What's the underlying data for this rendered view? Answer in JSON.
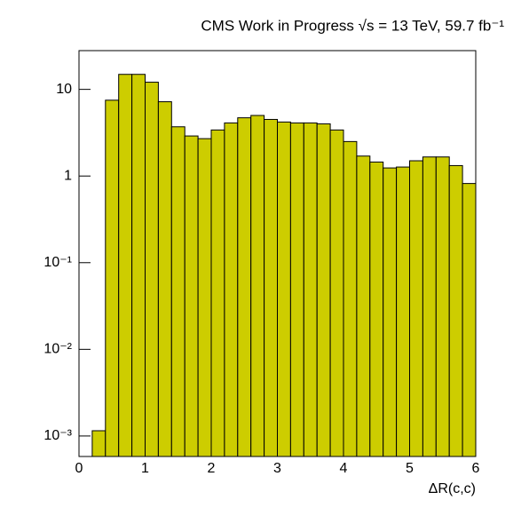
{
  "chart_data": {
    "type": "histogram",
    "title": "CMS Work in Progress √s = 13 TeV, 59.7 fb⁻¹",
    "x_label": "ΔR(c,c)",
    "bins": [
      0,
      0.2,
      0.4,
      0.6,
      0.8,
      1.0,
      1.2,
      1.4,
      1.6,
      1.8,
      2.0,
      2.2,
      2.4,
      2.6,
      2.8,
      3.0,
      3.2,
      3.4,
      3.6,
      3.8,
      4.0,
      4.2,
      4.4,
      4.6,
      4.8,
      5.0,
      5.2,
      5.4,
      5.6,
      5.8,
      6.0
    ],
    "values": [
      0,
      0.00115,
      7.5,
      14.9,
      14.9,
      12.1,
      7.2,
      3.7,
      2.9,
      2.7,
      3.4,
      4.1,
      4.7,
      5.0,
      4.5,
      4.2,
      4.1,
      4.1,
      4.0,
      3.4,
      2.5,
      1.7,
      1.45,
      1.24,
      1.27,
      1.5,
      1.66,
      1.66,
      1.32,
      0.82
    ],
    "color": "#cdcd00",
    "xlim": [
      0,
      6
    ],
    "xticks": [
      0,
      1,
      2,
      3,
      4,
      5,
      6
    ],
    "ylim": [
      0.00058,
      28
    ],
    "ylog": true,
    "yticks": [
      {
        "value": 0.001,
        "label": "10⁻³"
      },
      {
        "value": 0.01,
        "label": "10⁻²"
      },
      {
        "value": 0.1,
        "label": "10⁻¹"
      },
      1,
      10
    ],
    "grid": false
  }
}
